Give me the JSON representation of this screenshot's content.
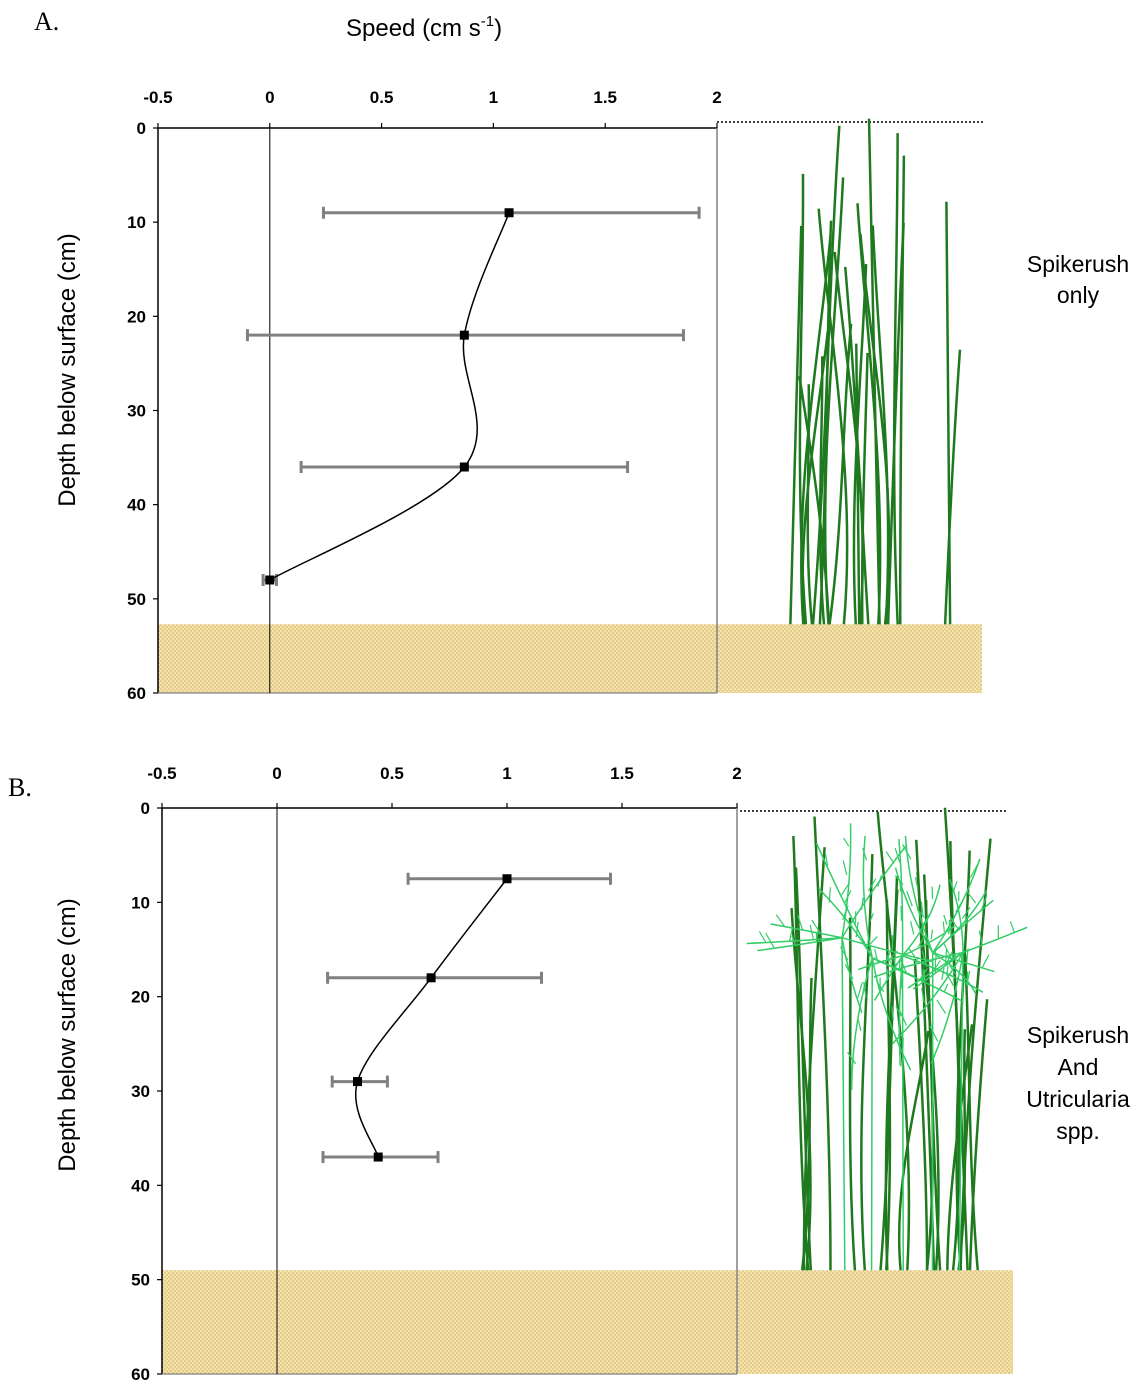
{
  "chart_data": [
    {
      "panel": "A.",
      "type": "line",
      "title": "Speed (cm s",
      "title_superscript": "-1",
      "title_close": ")",
      "xlabel": "Speed (cm s-1)",
      "ylabel": "Depth below surface (cm)",
      "xlim": [
        -0.5,
        2
      ],
      "ylim": [
        0,
        60
      ],
      "x_ticks": [
        "-0.5",
        "0",
        "0.5",
        "1",
        "1.5",
        "2"
      ],
      "y_ticks": [
        "0",
        "10",
        "20",
        "30",
        "40",
        "50",
        "60"
      ],
      "sediment_top_depth": 52.7,
      "series": [
        {
          "points": [
            {
              "x": 1.07,
              "y": 9,
              "err_low": 0.24,
              "err_high": 1.92
            },
            {
              "x": 0.87,
              "y": 22,
              "err_low": -0.1,
              "err_high": 1.85
            },
            {
              "x": 0.87,
              "y": 36,
              "err_low": 0.14,
              "err_high": 1.6
            },
            {
              "x": 0.0,
              "y": 48,
              "err_low": -0.03,
              "err_high": 0.03
            }
          ]
        }
      ],
      "side_label": [
        "Spikerush",
        "only"
      ]
    },
    {
      "panel": "B.",
      "type": "line",
      "xlabel": "",
      "ylabel": "Depth below surface (cm)",
      "xlim": [
        -0.5,
        2
      ],
      "ylim": [
        0,
        60
      ],
      "x_ticks": [
        "-0.5",
        "0",
        "0.5",
        "1",
        "1.5",
        "2"
      ],
      "y_ticks": [
        "0",
        "10",
        "20",
        "30",
        "40",
        "50",
        "60"
      ],
      "sediment_top_depth": 49,
      "series": [
        {
          "points": [
            {
              "x": 1.0,
              "y": 7.5,
              "err_low": 0.57,
              "err_high": 1.45
            },
            {
              "x": 0.67,
              "y": 18,
              "err_low": 0.22,
              "err_high": 1.15
            },
            {
              "x": 0.35,
              "y": 29,
              "err_low": 0.24,
              "err_high": 0.48
            },
            {
              "x": 0.44,
              "y": 37,
              "err_low": 0.2,
              "err_high": 0.7
            }
          ]
        }
      ],
      "side_label": [
        "Spikerush",
        "And",
        "Utricularia",
        "spp."
      ]
    }
  ],
  "colors": {
    "axis": "#000000",
    "error_bar": "#808080",
    "curve": "#000000",
    "marker": "#000000",
    "sediment_fill": "#f3e3b0",
    "sediment_dot": "#d4a94a",
    "spikerush": "#1f7a1f",
    "utricularia": "#33cc66"
  }
}
